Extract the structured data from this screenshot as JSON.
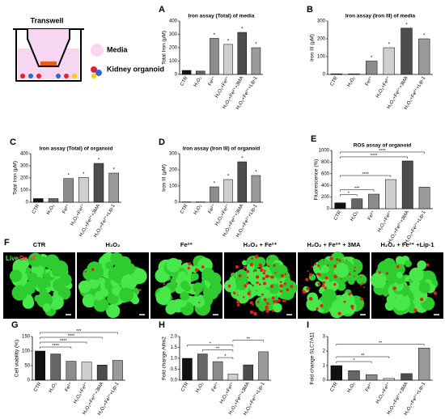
{
  "schematic": {
    "title": "Transwell",
    "labels": [
      "Media",
      "Kidney organoid"
    ]
  },
  "images": {
    "panel": "F",
    "labels": [
      "CTR",
      "H₂O₂",
      "Fe²⁺",
      "H₂O₂ + Fe²⁺",
      "H₂O₂ + Fe²⁺ + 3MA",
      "H₂O₂ + Fe²⁺ +Lip-1"
    ],
    "stain_live": "Live",
    "stain_dead": "Dead"
  },
  "chart_data": [
    {
      "type": "bar",
      "panel": "A",
      "title": "Iron assay (Total) of media",
      "ylabel": "Total Iron (μM)",
      "categories": [
        "CTR",
        "H₂O₂",
        "Fe²⁺",
        "H₂O₂+Fe²⁺",
        "H₂O₂+Fe²⁺+3MA",
        "H₂O₂+Fe²⁺+Lip-1"
      ],
      "values": [
        30,
        25,
        270,
        225,
        315,
        200
      ],
      "colors": [
        "#111111",
        "#666666",
        "#8c8c8c",
        "#cfcfcf",
        "#4d4d4d",
        "#9a9a9a"
      ],
      "ylim": [
        0,
        400
      ],
      "yticks": [
        0,
        100,
        200,
        300,
        400
      ],
      "significance": [
        null,
        null,
        "*",
        "*",
        "*",
        "*"
      ]
    },
    {
      "type": "bar",
      "panel": "B",
      "title": "Iron assay (Iron III) of media",
      "ylabel": "Iron III (μM)",
      "categories": [
        "CTR",
        "H₂O₂",
        "Fe²⁺",
        "H₂O₂+Fe²⁺",
        "H₂O₂+Fe²⁺+3MA",
        "H₂O₂+Fe²⁺+Lip-1"
      ],
      "values": [
        3,
        3,
        75,
        150,
        260,
        200
      ],
      "colors": [
        "#111111",
        "#666666",
        "#8c8c8c",
        "#cfcfcf",
        "#4d4d4d",
        "#9a9a9a"
      ],
      "ylim": [
        0,
        300
      ],
      "yticks": [
        0,
        100,
        200,
        300
      ],
      "significance": [
        null,
        null,
        "*",
        "*",
        "*",
        "*"
      ]
    },
    {
      "type": "bar",
      "panel": "C",
      "title": "Iron assay (Total) of organoid",
      "ylabel": "Total Iron (μM)",
      "categories": [
        "CTR",
        "H₂O₂",
        "Fe²⁺",
        "H₂O₂+Fe²⁺",
        "H₂O₂+Fe²⁺+3MA",
        "H₂O₂+Fe²⁺+Lip-1"
      ],
      "values": [
        30,
        30,
        195,
        205,
        320,
        240
      ],
      "colors": [
        "#111111",
        "#666666",
        "#8c8c8c",
        "#cfcfcf",
        "#4d4d4d",
        "#9a9a9a"
      ],
      "ylim": [
        0,
        400
      ],
      "yticks": [
        0,
        100,
        200,
        300,
        400
      ],
      "significance": [
        null,
        null,
        "*",
        "*",
        "*",
        "*"
      ]
    },
    {
      "type": "bar",
      "panel": "D",
      "title": "Iron assay (Iron III) of organoid",
      "ylabel": "Iron III (μM)",
      "categories": [
        "CTR",
        "H₂O₂",
        "Fe²⁺",
        "H₂O₂+Fe²⁺",
        "H₂O₂+Fe²⁺+3MA",
        "H₂O₂+Fe²⁺+Lip-1"
      ],
      "values": [
        2,
        2,
        95,
        140,
        250,
        165
      ],
      "colors": [
        "#111111",
        "#666666",
        "#8c8c8c",
        "#cfcfcf",
        "#4d4d4d",
        "#9a9a9a"
      ],
      "ylim": [
        0,
        300
      ],
      "yticks": [
        0,
        100,
        200,
        300
      ],
      "significance": [
        null,
        null,
        "*",
        "*",
        "*",
        "*"
      ]
    },
    {
      "type": "bar",
      "panel": "E",
      "title": "ROS assay of organoid",
      "ylabel": "Fluorescence (%)",
      "categories": [
        "CTR",
        "H₂O₂",
        "Fe²⁺",
        "H₂O₂+Fe²⁺",
        "H₂O₂+Fe²⁺+3MA",
        "H₂O₂+Fe²⁺+Lip-1"
      ],
      "values": [
        100,
        170,
        250,
        500,
        820,
        370
      ],
      "colors": [
        "#111111",
        "#666666",
        "#8c8c8c",
        "#cfcfcf",
        "#4d4d4d",
        "#9a9a9a"
      ],
      "ylim": [
        0,
        1000
      ],
      "yticks": [
        0,
        200,
        400,
        600,
        800,
        1000
      ],
      "comparisons": [
        {
          "from": 0,
          "to": 1,
          "label": "*"
        },
        {
          "from": 0,
          "to": 2,
          "label": "***"
        },
        {
          "from": 0,
          "to": 3,
          "label": "****"
        },
        {
          "from": 0,
          "to": 4,
          "label": "****"
        },
        {
          "from": 0,
          "to": 5,
          "label": "****"
        }
      ]
    },
    {
      "type": "bar",
      "panel": "G",
      "ylabel": "Cell viability (%)",
      "categories": [
        "CTR",
        "H₂O₂",
        "Fe²⁺",
        "H₂O₂+Fe²⁺",
        "H₂O₂+Fe²⁺+3MA",
        "H₂O₂+Fe²⁺+Lip-1"
      ],
      "values": [
        100,
        90,
        65,
        62,
        52,
        68
      ],
      "colors": [
        "#111111",
        "#666666",
        "#8c8c8c",
        "#cfcfcf",
        "#4d4d4d",
        "#9a9a9a"
      ],
      "ylim": [
        0,
        150
      ],
      "yticks": [
        0,
        50,
        100,
        150
      ],
      "comparisons": [
        {
          "from": 0,
          "to": 2,
          "label": "****"
        },
        {
          "from": 0,
          "to": 3,
          "label": "****"
        },
        {
          "from": 0,
          "to": 4,
          "label": "****"
        },
        {
          "from": 0,
          "to": 5,
          "label": "***"
        }
      ]
    },
    {
      "type": "bar",
      "panel": "H",
      "ylabel": "Fold change Aifm2",
      "categories": [
        "CTR",
        "H₂O₂",
        "Fe²⁺",
        "H₂O₂+Fe²⁺",
        "H₂O₂+Fe²⁺+3MA",
        "H₂O₂+Fe²⁺+Lip-1"
      ],
      "values": [
        1.0,
        1.2,
        0.85,
        0.28,
        0.7,
        1.3
      ],
      "colors": [
        "#111111",
        "#666666",
        "#8c8c8c",
        "#cfcfcf",
        "#4d4d4d",
        "#9a9a9a"
      ],
      "ylim": [
        0,
        2
      ],
      "yticks": [
        {
          "value": 0,
          "label": "0.0"
        },
        0.5,
        {
          "value": 1,
          "label": "1.0"
        },
        1.5,
        {
          "value": 2,
          "label": "2.0"
        }
      ],
      "comparisons": [
        {
          "from": 2,
          "to": 3,
          "label": "*"
        },
        {
          "from": 1,
          "to": 3,
          "label": "**"
        },
        {
          "from": 0,
          "to": 3,
          "label": "*"
        },
        {
          "from": 3,
          "to": 5,
          "label": "**"
        }
      ]
    },
    {
      "type": "bar",
      "panel": "I",
      "ylabel": "Fold change SLC7A11",
      "categories": [
        "CTR",
        "H₂O₂",
        "Fe²⁺",
        "H₂O₂+Fe²⁺",
        "H₂O₂+Fe²⁺+3MA",
        "H₂O₂+Fe²⁺+Lip-1"
      ],
      "values": [
        1.0,
        0.65,
        0.38,
        0.12,
        0.45,
        2.2
      ],
      "colors": [
        "#111111",
        "#666666",
        "#8c8c8c",
        "#cfcfcf",
        "#4d4d4d",
        "#9a9a9a"
      ],
      "ylim": [
        0,
        3
      ],
      "yticks": [
        0,
        1,
        2,
        3
      ],
      "comparisons": [
        {
          "from": 0,
          "to": 2,
          "label": "*"
        },
        {
          "from": 0,
          "to": 3,
          "label": "**"
        },
        {
          "from": 0,
          "to": 5,
          "label": "**"
        }
      ]
    }
  ]
}
